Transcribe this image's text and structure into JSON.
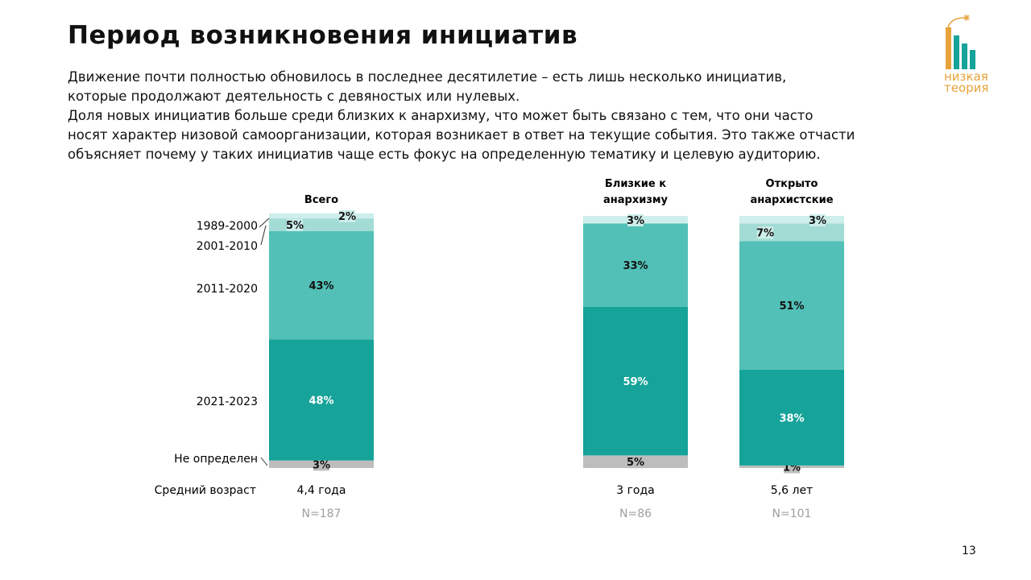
{
  "slide": {
    "title": "Период возникновения инициатив",
    "paragraph_lines": [
      "Движение почти полностью обновилось в последнее десятилетие – есть лишь несколько инициатив,",
      "которые продолжают деятельность с девяностых или нулевых.",
      "Доля новых инициатив больше среди близких к анархизму, что может быть связано с тем, что они часто",
      "носят характер низовой самоорганизации, которая возникает в ответ на текущие события. Это также отчасти",
      "объясняет почему у таких инициатив чаще есть фокус на определенную тематику и целевую аудиторию."
    ],
    "page_number": "13"
  },
  "logo": {
    "line1": "низкая",
    "line2": "теория",
    "color_orange": "#e8a23b",
    "color_teal": "#16a39a",
    "icon": "dynamite-bars-logo"
  },
  "chart_data": {
    "type": "bar",
    "stacked": true,
    "orientation": "vertical",
    "categories": [
      "Всего",
      "Близкие к анархизму",
      "Открыто анархистские"
    ],
    "category_title_lines": [
      [
        "Всего"
      ],
      [
        "Близкие к",
        "анархизму"
      ],
      [
        "Открыто",
        "анархистские"
      ]
    ],
    "series": [
      {
        "name": "Не определен",
        "color": "#bdbdbd",
        "values": [
          3,
          5,
          1
        ]
      },
      {
        "name": "2021-2023",
        "color": "#16a39a",
        "values": [
          48,
          59,
          38
        ]
      },
      {
        "name": "2011-2020",
        "color": "#52c0b6",
        "values": [
          43,
          33,
          51
        ]
      },
      {
        "name": "2001-2010",
        "color": "#a3dbd5",
        "values": [
          5,
          null,
          7
        ]
      },
      {
        "name": "1989-2000",
        "color": "#cdeeea",
        "values": [
          2,
          3,
          3
        ]
      }
    ],
    "row_label_title": "Средний возраст",
    "average_age": [
      "4,4 года",
      "3 года",
      "5,6 лет"
    ],
    "sample_sizes": [
      "N=187",
      "N=86",
      "N=101"
    ]
  }
}
